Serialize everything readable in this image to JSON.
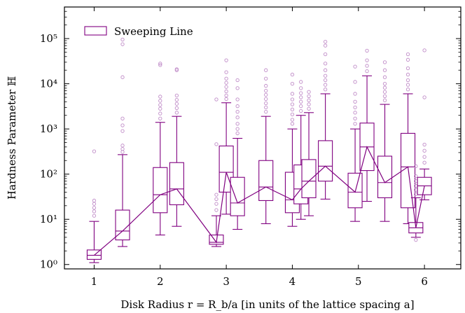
{
  "chart_data": {
    "type": "box",
    "title": "",
    "xlabel": "Disk Radius r = R_b/a    [in units of the lattice spacing a]",
    "ylabel": "Hardness Parameter ℍ",
    "yscale": "log",
    "xlim": [
      0.55,
      6.55
    ],
    "ylim_log10": [
      -0.1,
      0.1
    ],
    "ylim": [
      0.8,
      500000
    ],
    "x_ticks": [
      "1",
      "2",
      "3",
      "4",
      "5",
      "6"
    ],
    "y_ticks": [
      "10⁰",
      "10¹",
      "10²",
      "10³",
      "10⁴",
      "10⁵"
    ],
    "grid": false,
    "legend": {
      "position": "top-left",
      "entries": [
        "Sweeping Line"
      ]
    },
    "color": "#800080",
    "outlier_color": "#c08cc8",
    "series": [
      {
        "name": "Sweeping Line",
        "boxes": [
          {
            "x": 1.0,
            "whislo": 1.1,
            "q1": 1.3,
            "med": 1.6,
            "q3": 2.1,
            "whishi": 9,
            "fliers": [
              12,
              15,
              18,
              22,
              26,
              320
            ]
          },
          {
            "x": 1.43,
            "whislo": 2.5,
            "q1": 3.5,
            "med": 5.5,
            "q3": 16,
            "whishi": 270,
            "fliers": [
              310,
              360,
              430,
              900,
              1200,
              1700,
              14000,
              75000,
              95000
            ]
          },
          {
            "x": 2.0,
            "whislo": 4.5,
            "q1": 14,
            "med": 35,
            "q3": 140,
            "whishi": 1400,
            "fliers": [
              1700,
              2200,
              2800,
              3400,
              4200,
              5200,
              26000,
              28000
            ]
          },
          {
            "x": 2.25,
            "whislo": 7,
            "q1": 21,
            "med": 47,
            "q3": 180,
            "whishi": 1900,
            "fliers": [
              2300,
              2900,
              3600,
              4400,
              5500,
              20000,
              21000
            ]
          },
          {
            "x": 2.85,
            "whislo": 2.5,
            "q1": 2.8,
            "med": 3.1,
            "q3": 4.5,
            "whishi": 12,
            "fliers": [
              16,
              22,
              28,
              35,
              460,
              4500
            ]
          },
          {
            "x": 3.0,
            "whislo": 13,
            "q1": 40,
            "med": 110,
            "q3": 420,
            "whishi": 3800,
            "fliers": [
              4600,
              5500,
              6800,
              8500,
              10500,
              13000,
              18000,
              33000
            ]
          },
          {
            "x": 3.17,
            "whislo": 6,
            "q1": 12,
            "med": 23,
            "q3": 85,
            "whishi": 620,
            "fliers": [
              800,
              1000,
              1300,
              1800,
              2400,
              3200,
              4500,
              8000,
              12000
            ]
          },
          {
            "x": 3.6,
            "whislo": 8,
            "q1": 26,
            "med": 52,
            "q3": 200,
            "whishi": 1900,
            "fliers": [
              2400,
              3000,
              3700,
              4600,
              5700,
              7000,
              9000,
              13000,
              20000
            ]
          },
          {
            "x": 4.0,
            "whislo": 7,
            "q1": 14,
            "med": 27,
            "q3": 110,
            "whishi": 1000,
            "fliers": [
              1300,
              1600,
              2100,
              2700,
              3500,
              4500,
              6000,
              10000,
              16000
            ]
          },
          {
            "x": 4.13,
            "whislo": 10,
            "q1": 22,
            "med": 47,
            "q3": 160,
            "whishi": 2000,
            "fliers": [
              2500,
              3200,
              4000,
              5000,
              6200,
              8000,
              11000
            ]
          },
          {
            "x": 4.25,
            "whislo": 12,
            "q1": 30,
            "med": 70,
            "q3": 210,
            "whishi": 2300,
            "fliers": [
              2800,
              3500,
              4300,
              5300,
              6600
            ]
          },
          {
            "x": 4.5,
            "whislo": 28,
            "q1": 70,
            "med": 150,
            "q3": 550,
            "whishi": 6000,
            "fliers": [
              7500,
              9500,
              12000,
              15000,
              20000,
              28000,
              45000,
              70000,
              85000
            ]
          },
          {
            "x": 4.95,
            "whislo": 9,
            "q1": 18,
            "med": 40,
            "q3": 105,
            "whishi": 1000,
            "fliers": [
              1300,
              1700,
              2300,
              3000,
              4000,
              6000,
              11000,
              24000
            ]
          },
          {
            "x": 5.13,
            "whislo": 25,
            "q1": 120,
            "med": 400,
            "q3": 1350,
            "whishi": 15000,
            "fliers": [
              19000,
              25000,
              33000,
              54000
            ]
          },
          {
            "x": 5.4,
            "whislo": 9,
            "q1": 30,
            "med": 65,
            "q3": 250,
            "whishi": 3500,
            "fliers": [
              4300,
              5300,
              6600,
              8200,
              10000,
              14000,
              20000,
              30000
            ]
          },
          {
            "x": 5.75,
            "whislo": 8,
            "q1": 18,
            "med": 145,
            "q3": 800,
            "whishi": 6000,
            "fliers": [
              7500,
              9500,
              12000,
              16000,
              22000,
              34000,
              45000
            ]
          },
          {
            "x": 5.87,
            "whislo": 4,
            "q1": 5,
            "med": 6.5,
            "q3": 8.5,
            "whishi": 30,
            "fliers": [
              3.5,
              36,
              45,
              55,
              70,
              90,
              150
            ]
          },
          {
            "x": 6.0,
            "whislo": 27,
            "q1": 35,
            "med": 55,
            "q3": 85,
            "whishi": 130,
            "fliers": [
              180,
              240,
              330,
              450,
              5000,
              55000
            ]
          }
        ]
      }
    ]
  }
}
